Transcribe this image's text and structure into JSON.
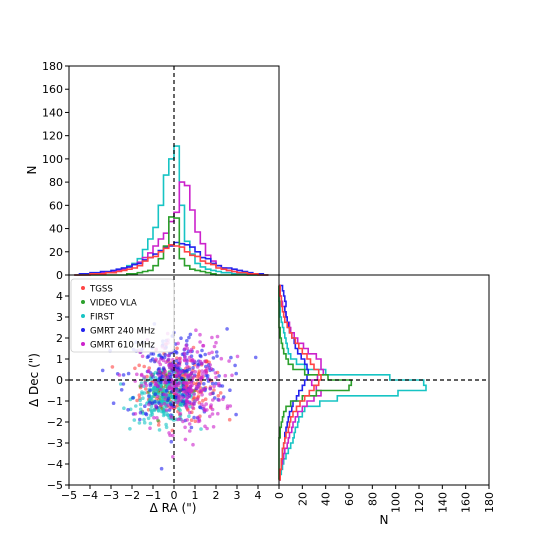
{
  "chart_data": [
    {
      "panel": "scatter",
      "type": "scatter",
      "xlabel": "Δ RA (\")",
      "ylabel": "Δ Dec (\")",
      "xlim": [
        -5,
        5
      ],
      "ylim": [
        -5,
        5
      ],
      "xticks": [
        -5,
        -4,
        -3,
        -2,
        -1,
        0,
        1,
        2,
        3,
        4
      ],
      "yticks": [
        -5,
        -4,
        -3,
        -2,
        -1,
        0,
        1,
        2,
        3,
        4
      ],
      "reference_lines": {
        "x": 0,
        "y": 0,
        "style": "dashed"
      },
      "legend": {
        "placement": "upper-left",
        "entries": [
          "TGSS",
          "VIDEO VLA",
          "FIRST",
          "GMRT 240 MHz",
          "GMRT 610 MHz"
        ]
      },
      "series": [
        {
          "name": "TGSS",
          "color": "#ff4545",
          "count": 220,
          "center": [
            0.2,
            -0.3
          ],
          "spread": [
            0.9,
            0.8
          ]
        },
        {
          "name": "VIDEO VLA",
          "color": "#2ca02c",
          "count": 60,
          "center": [
            -0.3,
            -0.4
          ],
          "spread": [
            0.45,
            0.45
          ]
        },
        {
          "name": "FIRST",
          "color": "#17c4c4",
          "count": 240,
          "center": [
            -0.4,
            -0.8
          ],
          "spread": [
            0.75,
            0.6
          ]
        },
        {
          "name": "GMRT 240 MHz",
          "color": "#2222ee",
          "count": 230,
          "center": [
            0.1,
            0.2
          ],
          "spread": [
            1.2,
            1.1
          ]
        },
        {
          "name": "GMRT 610 MHz",
          "color": "#cc22cc",
          "count": 260,
          "center": [
            0.4,
            -0.2
          ],
          "spread": [
            1.0,
            1.1
          ]
        }
      ]
    },
    {
      "panel": "ra_histogram",
      "type": "histogram",
      "ylabel": "N",
      "xlim": [
        -5,
        5
      ],
      "ylim": [
        0,
        180
      ],
      "yticks": [
        0,
        20,
        40,
        60,
        80,
        100,
        120,
        140,
        160,
        180
      ],
      "bin_edges": [
        -4.75,
        -4.5,
        -4.25,
        -4.0,
        -3.75,
        -3.5,
        -3.25,
        -3.0,
        -2.75,
        -2.5,
        -2.25,
        -2.0,
        -1.75,
        -1.5,
        -1.25,
        -1.0,
        -0.75,
        -0.5,
        -0.25,
        0.0,
        0.25,
        0.5,
        0.75,
        1.0,
        1.25,
        1.5,
        1.75,
        2.0,
        2.25,
        2.5,
        2.75,
        3.0,
        3.25,
        3.5,
        3.75,
        4.0,
        4.25,
        4.5
      ],
      "series": [
        {
          "name": "FIRST",
          "color": "#17c4c4",
          "values": [
            0,
            0,
            0,
            1,
            1,
            2,
            2,
            3,
            4,
            6,
            8,
            10,
            14,
            22,
            31,
            41,
            60,
            86,
            100,
            111,
            60,
            29,
            18,
            10,
            7,
            5,
            4,
            3,
            2,
            2,
            1,
            1,
            1,
            0,
            0,
            0,
            0
          ]
        },
        {
          "name": "GMRT 610 MHz",
          "color": "#cc22cc",
          "values": [
            0,
            0,
            0,
            1,
            1,
            2,
            2,
            3,
            4,
            5,
            7,
            9,
            11,
            15,
            19,
            25,
            31,
            36,
            46,
            54,
            80,
            77,
            56,
            37,
            27,
            17,
            12,
            8,
            6,
            4,
            3,
            2,
            2,
            1,
            1,
            0,
            0
          ]
        },
        {
          "name": "GMRT 240 MHz",
          "color": "#2222ee",
          "values": [
            0,
            1,
            1,
            2,
            2,
            3,
            3,
            4,
            5,
            6,
            7,
            9,
            10,
            13,
            15,
            18,
            21,
            24,
            25,
            28,
            27,
            26,
            24,
            20,
            15,
            14,
            10,
            8,
            6,
            6,
            5,
            4,
            3,
            2,
            1,
            1,
            0
          ]
        },
        {
          "name": "VIDEO VLA",
          "color": "#2ca02c",
          "values": [
            0,
            0,
            0,
            0,
            0,
            0,
            0,
            0,
            0,
            0,
            1,
            1,
            2,
            3,
            4,
            8,
            14,
            25,
            50,
            49,
            14,
            8,
            5,
            4,
            3,
            2,
            1,
            0,
            0,
            0,
            0,
            0,
            0,
            0,
            0,
            0,
            0
          ]
        },
        {
          "name": "TGSS",
          "color": "#ff4545",
          "values": [
            0,
            0,
            0,
            1,
            1,
            1,
            2,
            2,
            3,
            4,
            5,
            6,
            8,
            12,
            15,
            16,
            20,
            23,
            26,
            25,
            24,
            20,
            17,
            16,
            12,
            10,
            9,
            6,
            5,
            4,
            3,
            2,
            2,
            1,
            1,
            0,
            0
          ]
        }
      ]
    },
    {
      "panel": "dec_histogram",
      "type": "histogram",
      "orientation": "horizontal",
      "xlabel": "N",
      "xlim": [
        0,
        180
      ],
      "ylim": [
        -5,
        5
      ],
      "xticks": [
        0,
        20,
        40,
        60,
        80,
        100,
        120,
        140,
        160,
        180
      ],
      "bin_edges": [
        -4.75,
        -4.5,
        -4.25,
        -4.0,
        -3.75,
        -3.5,
        -3.25,
        -3.0,
        -2.75,
        -2.5,
        -2.25,
        -2.0,
        -1.75,
        -1.5,
        -1.25,
        -1.0,
        -0.75,
        -0.5,
        -0.25,
        0.0,
        0.25,
        0.5,
        0.75,
        1.0,
        1.25,
        1.5,
        1.75,
        2.0,
        2.25,
        2.5,
        2.75,
        3.0,
        3.25,
        3.5,
        3.75,
        4.0,
        4.25,
        4.5
      ],
      "series": [
        {
          "name": "FIRST",
          "color": "#17c4c4",
          "values": [
            1,
            2,
            3,
            4,
            6,
            8,
            10,
            12,
            13,
            14,
            16,
            17,
            20,
            22,
            35,
            50,
            102,
            126,
            124,
            95,
            40,
            22,
            15,
            10,
            8,
            7,
            6,
            5,
            4,
            3,
            2,
            1,
            1,
            1,
            0,
            0,
            0
          ]
        },
        {
          "name": "GMRT 610 MHz",
          "color": "#cc22cc",
          "values": [
            1,
            1,
            2,
            3,
            4,
            5,
            7,
            8,
            9,
            11,
            12,
            14,
            16,
            20,
            24,
            30,
            36,
            32,
            28,
            33,
            38,
            36,
            36,
            32,
            25,
            21,
            16,
            13,
            10,
            9,
            7,
            6,
            5,
            3,
            2,
            1,
            1
          ]
        },
        {
          "name": "GMRT 240 MHz",
          "color": "#2222ee",
          "values": [
            1,
            1,
            2,
            2,
            3,
            3,
            4,
            5,
            5,
            6,
            7,
            8,
            9,
            11,
            12,
            15,
            17,
            20,
            22,
            24,
            25,
            24,
            22,
            19,
            16,
            14,
            13,
            11,
            9,
            8,
            7,
            6,
            5,
            6,
            5,
            4,
            3
          ]
        },
        {
          "name": "VIDEO VLA",
          "color": "#2ca02c",
          "values": [
            0,
            0,
            0,
            0,
            0,
            0,
            0,
            0,
            1,
            1,
            2,
            3,
            4,
            6,
            10,
            20,
            32,
            60,
            62,
            42,
            22,
            12,
            8,
            6,
            4,
            3,
            2,
            1,
            1,
            0,
            0,
            0,
            0,
            0,
            0,
            0,
            0
          ]
        },
        {
          "name": "TGSS",
          "color": "#ff4545",
          "values": [
            1,
            1,
            2,
            2,
            3,
            3,
            4,
            5,
            6,
            8,
            9,
            10,
            12,
            15,
            18,
            22,
            26,
            30,
            34,
            36,
            34,
            30,
            27,
            24,
            20,
            17,
            14,
            11,
            9,
            7,
            5,
            4,
            3,
            2,
            2,
            1,
            1
          ]
        }
      ]
    }
  ]
}
